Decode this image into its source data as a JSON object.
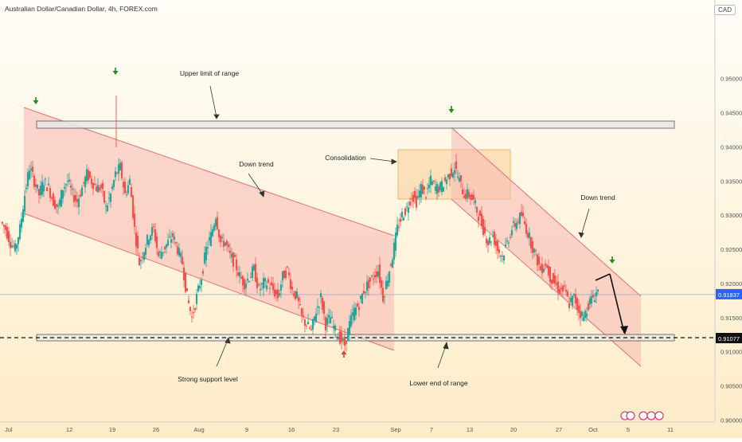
{
  "header": {
    "title": "Australian Dollar/Canadian Dollar, 4h, FOREX.com",
    "currency": "CAD"
  },
  "chart_data": {
    "type": "candlestick",
    "ylim": [
      0.8997,
      0.9615
    ],
    "y_ticks": [
      "0.95000",
      "0.94500",
      "0.94000",
      "0.93500",
      "0.93000",
      "0.92500",
      "0.92000",
      "0.91500",
      "0.91000",
      "0.90500",
      "0.90000"
    ],
    "y_tick_values": [
      0.95,
      0.945,
      0.94,
      0.935,
      0.93,
      0.925,
      0.92,
      0.915,
      0.91,
      0.905,
      0.9
    ],
    "x_ticks": [
      "Jul",
      "12",
      "19",
      "26",
      "Aug",
      "9",
      "16",
      "23",
      "Sep",
      "7",
      "13",
      "20",
      "27",
      "Oct",
      "5",
      "11"
    ],
    "current_price": "0.91837",
    "current_price_value": 0.91837,
    "support_price": "0.91077",
    "support_price_value": 0.91077,
    "price_path": [
      0.929,
      0.928,
      0.926,
      0.925,
      0.928,
      0.933,
      0.937,
      0.935,
      0.933,
      0.935,
      0.934,
      0.932,
      0.931,
      0.934,
      0.935,
      0.933,
      0.932,
      0.934,
      0.936,
      0.935,
      0.934,
      0.934,
      0.931,
      0.933,
      0.936,
      0.937,
      0.933,
      0.935,
      0.928,
      0.923,
      0.925,
      0.927,
      0.928,
      0.924,
      0.925,
      0.926,
      0.927,
      0.925,
      0.923,
      0.918,
      0.915,
      0.918,
      0.921,
      0.925,
      0.927,
      0.93,
      0.926,
      0.926,
      0.924,
      0.923,
      0.921,
      0.92,
      0.921,
      0.922,
      0.919,
      0.92,
      0.92,
      0.919,
      0.918,
      0.921,
      0.922,
      0.919,
      0.918,
      0.915,
      0.914,
      0.913,
      0.916,
      0.918,
      0.914,
      0.915,
      0.913,
      0.912,
      0.911,
      0.914,
      0.916,
      0.917,
      0.919,
      0.92,
      0.921,
      0.922,
      0.918,
      0.921,
      0.924,
      0.928,
      0.93,
      0.931,
      0.933,
      0.932,
      0.934,
      0.933,
      0.935,
      0.934,
      0.934,
      0.935,
      0.936,
      0.937,
      0.935,
      0.933,
      0.933,
      0.932,
      0.93,
      0.928,
      0.926,
      0.927,
      0.925,
      0.924,
      0.926,
      0.928,
      0.929,
      0.93,
      0.928,
      0.926,
      0.924,
      0.922,
      0.923,
      0.921,
      0.92,
      0.919,
      0.919,
      0.917,
      0.918,
      0.916,
      0.915,
      0.917,
      0.918,
      0.919
    ],
    "series_color_up": "#26a69a",
    "series_color_down": "#ef5350",
    "channel_fill": "#f8b8b3",
    "consolidation_fill": "#fbd6a8",
    "bull_arrow_color": "#1b8f1b",
    "bear_arrow_color": "#e53935",
    "annotations": {
      "upper_limit": "Upper limit of range",
      "down_trend_1": "Down trend",
      "consolidation": "Consolidation",
      "down_trend_2": "Down trend",
      "strong_support": "Strong support level",
      "lower_end": "Lower end of range"
    }
  }
}
